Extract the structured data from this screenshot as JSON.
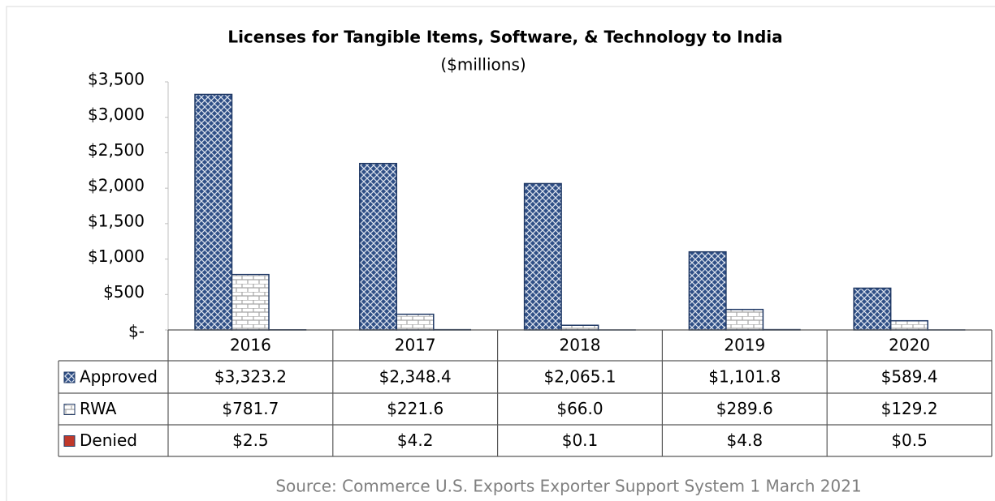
{
  "chart_data": {
    "type": "bar",
    "title": "Licenses for Tangible Items, Software, & Technology to India",
    "subtitle": "($millions)",
    "categories": [
      "2016",
      "2017",
      "2018",
      "2019",
      "2020"
    ],
    "series": [
      {
        "name": "Approved",
        "color": "#2f4f86",
        "values": [
          3323.2,
          2348.4,
          2065.1,
          1101.8,
          589.4
        ],
        "value_labels": [
          "$3,323.2",
          "$2,348.4",
          "$2,065.1",
          "$1,101.8",
          "$589.4"
        ]
      },
      {
        "name": "RWA",
        "color": "#a6a6a6",
        "values": [
          781.7,
          221.6,
          66.0,
          289.6,
          129.2
        ],
        "value_labels": [
          "$781.7",
          "$221.6",
          "$66.0",
          "$289.6",
          "$129.2"
        ]
      },
      {
        "name": "Denied",
        "color": "#c0392b",
        "values": [
          2.5,
          4.2,
          0.1,
          4.8,
          0.5
        ],
        "value_labels": [
          "$2.5",
          "$4.2",
          "$0.1",
          "$4.8",
          "$0.5"
        ]
      }
    ],
    "ylim": [
      0,
      3500
    ],
    "yticks": [
      {
        "value": 0,
        "label": "$-"
      },
      {
        "value": 500,
        "label": "$500"
      },
      {
        "value": 1000,
        "label": "$1,000"
      },
      {
        "value": 1500,
        "label": "$1,500"
      },
      {
        "value": 2000,
        "label": "$2,000"
      },
      {
        "value": 2500,
        "label": "$2,500"
      },
      {
        "value": 3000,
        "label": "$3,000"
      },
      {
        "value": 3500,
        "label": "$3,500"
      }
    ],
    "grid": false,
    "source": "Source: Commerce U.S. Exports Exporter Support System 1 March 2021"
  }
}
